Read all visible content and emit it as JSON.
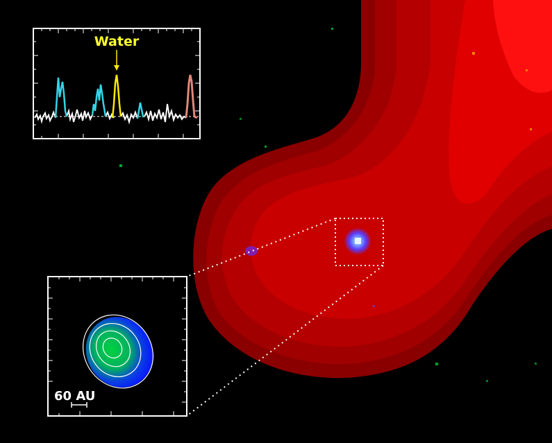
{
  "spectrum_inset": {
    "label": "Water",
    "label_color": "#ffff33",
    "baseline_color": "#ffffff",
    "line_colors": {
      "cyan": "#33d6e6",
      "water": "#ffea00",
      "salmon": "#e08878"
    }
  },
  "zoom_inset": {
    "scale_label": "60 AU",
    "colors": {
      "core": "#00c040",
      "outer": "#1020ff",
      "contours": "#ffffff"
    }
  },
  "image_colors": {
    "background": "#000000",
    "emission": "#ff0000",
    "border": "#ffffff"
  }
}
